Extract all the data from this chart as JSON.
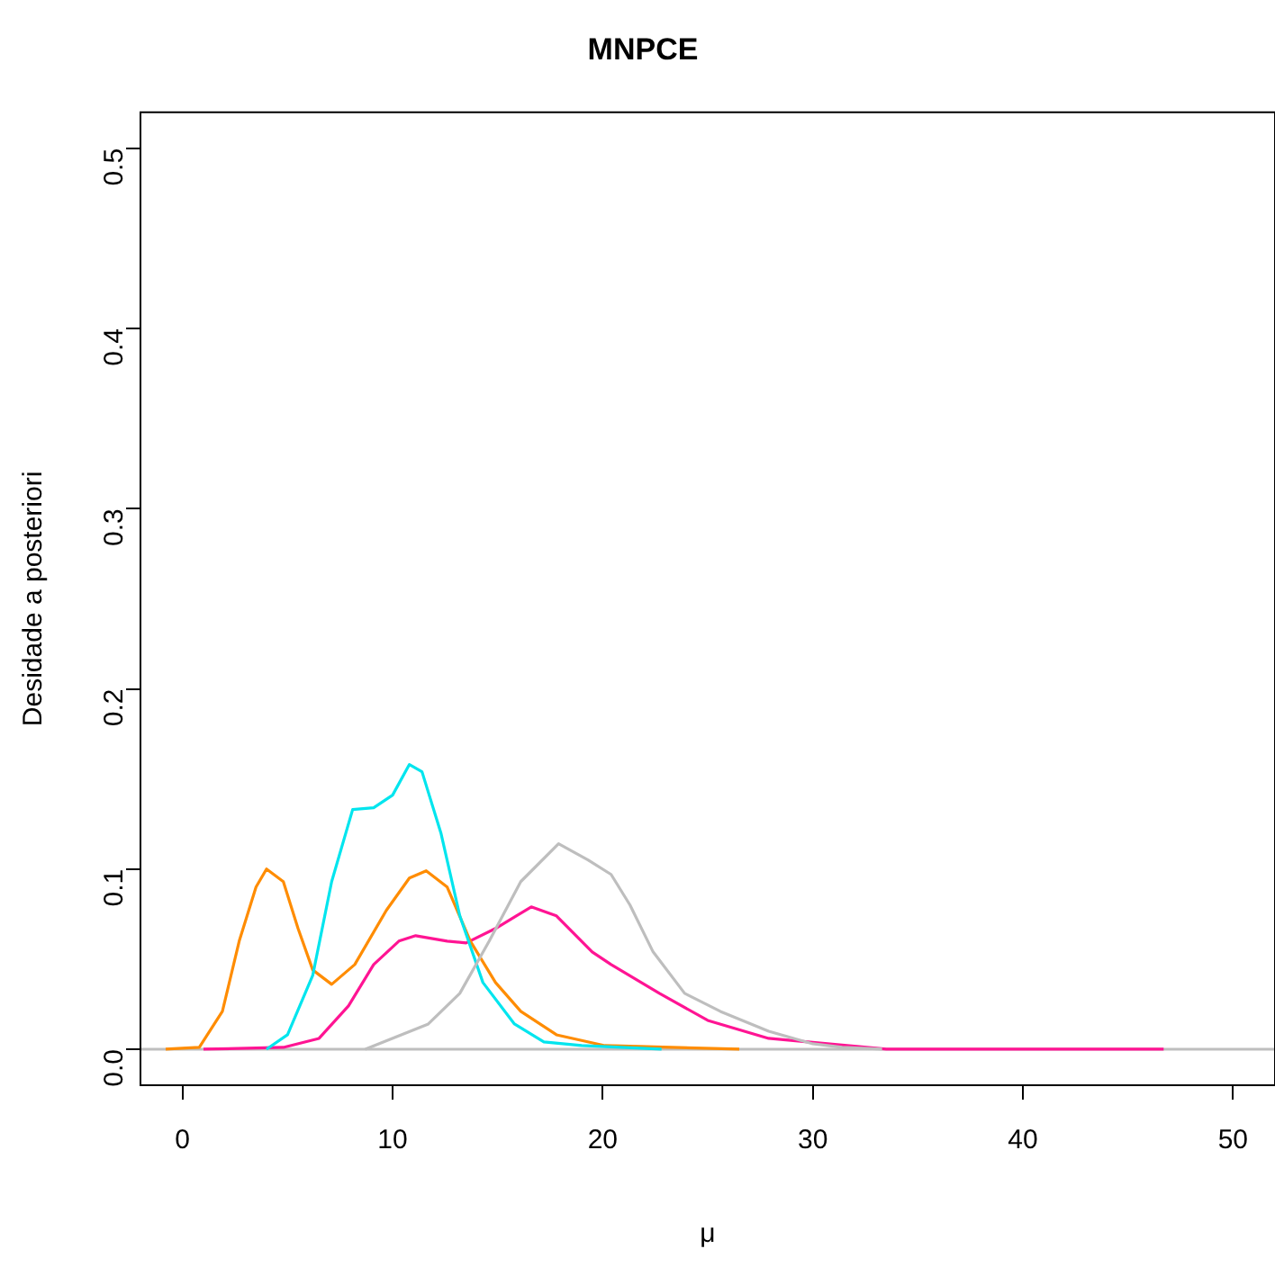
{
  "chart_data": {
    "type": "line",
    "title": "MNPCE",
    "xlabel": "μ",
    "ylabel": "Desidade a posteriori",
    "xlim": [
      -2,
      52
    ],
    "ylim": [
      -0.02,
      0.52
    ],
    "xticks": [
      0,
      10,
      20,
      30,
      40,
      50
    ],
    "yticks": [
      {
        "value": 0,
        "label": "0.0"
      },
      {
        "value": 0.1,
        "label": "0.1"
      },
      {
        "value": 0.2,
        "label": "0.2"
      },
      {
        "value": 0.3,
        "label": "0.3"
      },
      {
        "value": 0.4,
        "label": "0.4"
      },
      {
        "value": 0.5,
        "label": "0.5"
      }
    ],
    "grid": false,
    "legend": false,
    "line_style": "solid",
    "marker": "none",
    "ref_lines": [
      {
        "axis": "y",
        "value": 0,
        "label": null,
        "color": "#bebebe"
      }
    ],
    "series": [
      {
        "color": "#bebebe",
        "x": [
          8.7,
          11.7,
          13.2,
          14.6,
          16.1,
          17.9,
          19.3,
          20.4,
          21.3,
          22.4,
          23.9,
          25.6,
          27.9,
          30,
          31.4,
          33.3
        ],
        "values": [
          0,
          0.014,
          0.031,
          0.06,
          0.093,
          0.114,
          0.105,
          0.097,
          0.08,
          0.054,
          0.031,
          0.021,
          0.01,
          0.003,
          0.001,
          0
        ]
      },
      {
        "color": "#00e5ee",
        "x": [
          4,
          5,
          6.2,
          7.1,
          8.1,
          9.1,
          10,
          10.8,
          11.4,
          12.3,
          13.2,
          14.3,
          15.8,
          17.2,
          19,
          22.8
        ],
        "values": [
          0,
          0.008,
          0.041,
          0.093,
          0.133,
          0.134,
          0.141,
          0.158,
          0.154,
          0.12,
          0.074,
          0.037,
          0.014,
          0.004,
          0.002,
          0
        ]
      },
      {
        "color": "#ff8c00",
        "x": [
          -0.8,
          0.8,
          1.9,
          2.7,
          3.5,
          4,
          4.8,
          5.5,
          6.2,
          7.1,
          8.2,
          9.7,
          10.8,
          11.6,
          12.6,
          13.7,
          14.9,
          16.1,
          17.8,
          20.1,
          26.5
        ],
        "values": [
          0,
          0.001,
          0.021,
          0.06,
          0.09,
          0.1,
          0.093,
          0.067,
          0.044,
          0.036,
          0.047,
          0.077,
          0.095,
          0.099,
          0.09,
          0.06,
          0.037,
          0.021,
          0.008,
          0.002,
          0
        ]
      },
      {
        "color": "#ff1493",
        "x": [
          1,
          4.8,
          6.5,
          7.9,
          9.1,
          10.3,
          11.1,
          12.6,
          13.5,
          14.9,
          16.6,
          17.8,
          19.5,
          20.4,
          22.7,
          25,
          27.9,
          33.5,
          46.7
        ],
        "values": [
          0,
          0.001,
          0.006,
          0.024,
          0.047,
          0.06,
          0.063,
          0.06,
          0.059,
          0.067,
          0.079,
          0.074,
          0.054,
          0.047,
          0.031,
          0.016,
          0.006,
          0,
          0
        ]
      }
    ]
  }
}
